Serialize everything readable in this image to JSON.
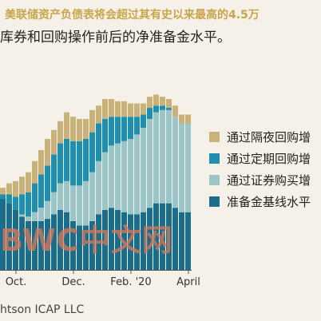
{
  "header": {
    "title_line1": "美联储资产负债表将会超过其有史以来最高的4.5万",
    "title_line2": "库券和回购操作前后的净准备金水平。"
  },
  "source": "htson ICAP LLC",
  "watermark": "BWC中文网",
  "colors": {
    "overnight_repo": "#c9b37a",
    "term_repo": "#1f8fb0",
    "securities": "#9cc5c7",
    "baseline": "#1a6e8c"
  },
  "chart_data": {
    "type": "bar",
    "stacked": true,
    "x_tick_labels": [
      "Oct.",
      "Dec.",
      "Feb. '20",
      "April"
    ],
    "x_tick_week_index": [
      2,
      11,
      20,
      29
    ],
    "num_weeks": 30,
    "ylim": [
      0,
      1.0
    ],
    "y_axis_labels_visible": false,
    "legend_placement": "right",
    "series": [
      {
        "name": "通过隔夜回购增",
        "key": "overnight_repo",
        "values": [
          0.03,
          0.05,
          0.07,
          0.08,
          0.09,
          0.1,
          0.11,
          0.12,
          0.11,
          0.1,
          0.12,
          0.11,
          0.1,
          0.09,
          0.1,
          0.08,
          0.09,
          0.08,
          0.07,
          0.07,
          0.06,
          0.06,
          0.05,
          0.05,
          0.05,
          0.04,
          0.04,
          0.05,
          0.04,
          0.04
        ]
      },
      {
        "name": "通过定期回购增",
        "key": "term_repo",
        "values": [
          0.02,
          0.04,
          0.06,
          0.09,
          0.11,
          0.13,
          0.15,
          0.16,
          0.17,
          0.18,
          0.19,
          0.2,
          0.2,
          0.19,
          0.18,
          0.17,
          0.15,
          0.13,
          0.12,
          0.11,
          0.1,
          0.08,
          0.06,
          0.05,
          0.03,
          0.02,
          0.01,
          0.0,
          0.0,
          0.0
        ]
      },
      {
        "name": "通过证券购买增",
        "key": "securities",
        "values": [
          0.0,
          0.0,
          0.0,
          0.01,
          0.02,
          0.04,
          0.06,
          0.08,
          0.1,
          0.12,
          0.14,
          0.16,
          0.18,
          0.2,
          0.22,
          0.24,
          0.26,
          0.28,
          0.3,
          0.32,
          0.34,
          0.36,
          0.38,
          0.4,
          0.41,
          0.42,
          0.42,
          0.41,
          0.4,
          0.4
        ]
      },
      {
        "name": "准备金基线水平",
        "key": "baseline",
        "values": [
          0.32,
          0.3,
          0.27,
          0.24,
          0.22,
          0.22,
          0.22,
          0.23,
          0.25,
          0.27,
          0.26,
          0.22,
          0.2,
          0.2,
          0.22,
          0.25,
          0.27,
          0.28,
          0.27,
          0.26,
          0.25,
          0.25,
          0.26,
          0.28,
          0.3,
          0.3,
          0.3,
          0.28,
          0.26,
          0.26
        ]
      }
    ]
  }
}
